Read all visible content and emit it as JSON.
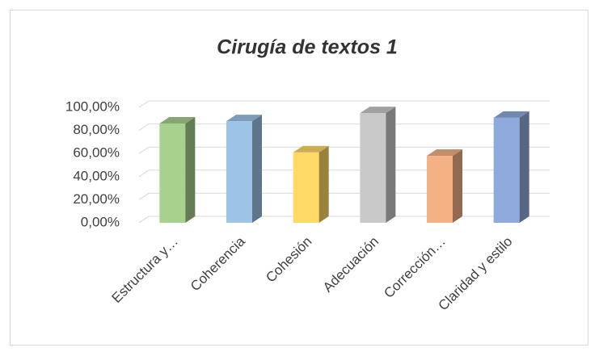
{
  "chart_data": {
    "type": "bar3d",
    "title": "Cirugía de textos 1",
    "categories": [
      "Estructura y…",
      "Coherencia",
      "Cohesión",
      "Adecuación",
      "Corrección…",
      "Claridad y estilo"
    ],
    "values": [
      86,
      88,
      61,
      95,
      58,
      91
    ],
    "colors": [
      "#a9d18e",
      "#9dc3e6",
      "#ffd966",
      "#c9c9c9",
      "#f4b183",
      "#8faadc"
    ],
    "ylim": [
      0,
      100
    ],
    "yticks": [
      {
        "value": 0,
        "label": "0,00%"
      },
      {
        "value": 20,
        "label": "20,00%"
      },
      {
        "value": 40,
        "label": "40,00%"
      },
      {
        "value": 60,
        "label": "60,00%"
      },
      {
        "value": 80,
        "label": "80,00%"
      },
      {
        "value": 100,
        "label": "100,00%"
      }
    ],
    "grid": true
  }
}
